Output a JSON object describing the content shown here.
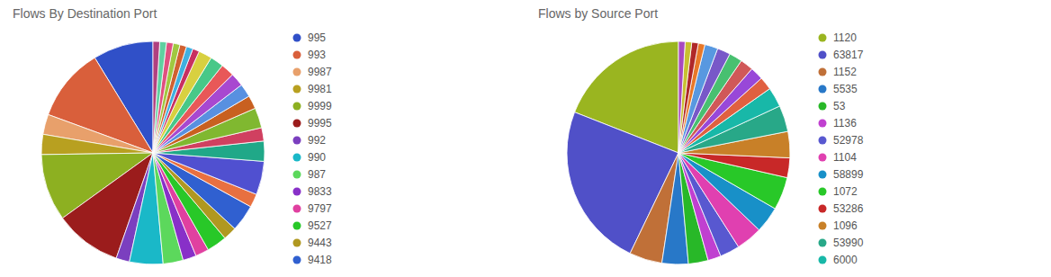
{
  "chart_data": [
    {
      "type": "pie",
      "title": "Flows By Destination Port",
      "categories": [
        "995",
        "993",
        "9987",
        "9981",
        "9999",
        "9995",
        "992",
        "990",
        "987",
        "9833",
        "9797",
        "9527",
        "9443",
        "9418",
        null,
        null,
        null,
        null,
        null,
        null,
        null,
        null,
        null,
        null,
        null,
        null,
        null,
        null,
        null,
        null,
        null,
        null
      ],
      "values": [
        9,
        11,
        3,
        3,
        10,
        10,
        2,
        5,
        3,
        2,
        2,
        3,
        2,
        4,
        2,
        5,
        3,
        2,
        3,
        2,
        2,
        2,
        2,
        2,
        2,
        1,
        1,
        1,
        1,
        1,
        1,
        1
      ],
      "colors": [
        "#3050c8",
        "#d95f3b",
        "#e8a06b",
        "#b8a020",
        "#8db021",
        "#9b1c1c",
        "#7b3fbf",
        "#1ab8c8",
        "#5cd85c",
        "#8830c8",
        "#e040a0",
        "#28c828",
        "#b09820",
        "#3060d0",
        "#e87040",
        "#5050d0",
        "#20a888",
        "#d04060",
        "#80b830",
        "#c86020",
        "#5890e0",
        "#a848d0",
        "#e85858",
        "#48c888",
        "#d8d040",
        "#c83060",
        "#40b0e0",
        "#d06030",
        "#a0c840",
        "#e05080",
        "#60d0a0",
        "#b04080"
      ],
      "legend": "right"
    },
    {
      "type": "pie",
      "title": "Flows by Source Port",
      "categories": [
        "1120",
        "63817",
        "1152",
        "5535",
        "53",
        "1136",
        "52978",
        "1104",
        "58899",
        "1072",
        "53286",
        "1096",
        "53990",
        "6000",
        null,
        null,
        null,
        null,
        null,
        null,
        null,
        null,
        null,
        null
      ],
      "values": [
        20,
        25,
        5,
        4,
        3,
        2,
        3,
        4,
        4,
        5,
        3,
        4,
        4,
        3,
        2,
        2,
        2,
        2,
        2,
        2,
        1,
        1,
        1,
        1
      ],
      "colors": [
        "#9ab520",
        "#5050c8",
        "#c07038",
        "#2878c8",
        "#28b828",
        "#c040d0",
        "#5858d0",
        "#e040b0",
        "#1890c8",
        "#28c828",
        "#c82828",
        "#c88028",
        "#28a888",
        "#18b8a8",
        "#e06040",
        "#9848d8",
        "#d05858",
        "#48c070",
        "#7858c8",
        "#5898e0",
        "#e87828",
        "#b02828",
        "#c8c030",
        "#a848c0"
      ],
      "legend": "right"
    }
  ]
}
